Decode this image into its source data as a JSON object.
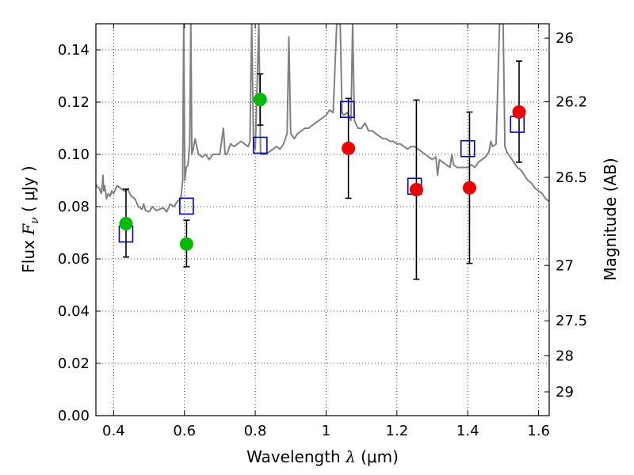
{
  "chart_data": {
    "type": "scatter",
    "xlabel": "Wavelength",
    "xlabel_symbol": "λ",
    "xlabel_unit": "(μm)",
    "ylabel": "Flux",
    "ylabel_symbol": "F",
    "ylabel_sub": "ν",
    "ylabel_unit": "( μJy )",
    "y2label": "Magnitude (AB)",
    "xlim": [
      0.35,
      1.63
    ],
    "ylim": [
      0.0,
      0.15
    ],
    "grid": true,
    "x_ticks": [
      {
        "value": 0.4,
        "label": "0.4"
      },
      {
        "value": 0.6,
        "label": "0.6"
      },
      {
        "value": 0.8,
        "label": "0.8"
      },
      {
        "value": 1.0,
        "label": "1"
      },
      {
        "value": 1.2,
        "label": "1.2"
      },
      {
        "value": 1.4,
        "label": "1.4"
      },
      {
        "value": 1.6,
        "label": "1.6"
      }
    ],
    "y_ticks": [
      {
        "value": 0.0,
        "label": "0.00"
      },
      {
        "value": 0.02,
        "label": "0.02"
      },
      {
        "value": 0.04,
        "label": "0.04"
      },
      {
        "value": 0.06,
        "label": "0.06"
      },
      {
        "value": 0.08,
        "label": "0.08"
      },
      {
        "value": 0.1,
        "label": "0.10"
      },
      {
        "value": 0.12,
        "label": "0.12"
      },
      {
        "value": 0.14,
        "label": "0.14"
      }
    ],
    "y2_ticks": [
      {
        "flux": 0.1445,
        "label": "26"
      },
      {
        "flux": 0.1202,
        "label": "26.2"
      },
      {
        "flux": 0.0912,
        "label": "26.5"
      },
      {
        "flux": 0.0575,
        "label": "27"
      },
      {
        "flux": 0.0363,
        "label": "27.5"
      },
      {
        "flux": 0.0229,
        "label": "28"
      },
      {
        "flux": 0.0091,
        "label": "29"
      }
    ],
    "series": [
      {
        "marker": "open-square",
        "color": "#0000cc",
        "points": [
          {
            "x": 0.435,
            "y": 0.0695
          },
          {
            "x": 0.606,
            "y": 0.0802
          },
          {
            "x": 0.814,
            "y": 0.1035
          },
          {
            "x": 1.06,
            "y": 0.1172
          },
          {
            "x": 1.25,
            "y": 0.0878
          },
          {
            "x": 1.4,
            "y": 0.1022
          },
          {
            "x": 1.54,
            "y": 0.1115
          }
        ]
      },
      {
        "marker": "filled-circle",
        "color": "#00bb00",
        "points": [
          {
            "x": 0.435,
            "y": 0.0735,
            "err_low": 0.0607,
            "err_high": 0.0867
          },
          {
            "x": 0.606,
            "y": 0.0657,
            "err_low": 0.057,
            "err_high": 0.0748
          },
          {
            "x": 0.814,
            "y": 0.121,
            "err_low": 0.1112,
            "err_high": 0.1308
          }
        ]
      },
      {
        "marker": "filled-circle",
        "color": "#ee0000",
        "points": [
          {
            "x": 1.063,
            "y": 0.1023,
            "err_low": 0.0832,
            "err_high": 0.1214
          },
          {
            "x": 1.255,
            "y": 0.0865,
            "err_low": 0.0522,
            "err_high": 0.1208
          },
          {
            "x": 1.405,
            "y": 0.0872,
            "err_low": 0.0583,
            "err_high": 0.1162
          },
          {
            "x": 1.545,
            "y": 0.1162,
            "err_low": 0.097,
            "err_high": 0.1357
          }
        ]
      }
    ],
    "spectrum": {
      "color": "#808080",
      "points": [
        [
          0.35,
          0.0885
        ],
        [
          0.355,
          0.0875
        ],
        [
          0.36,
          0.087
        ],
        [
          0.365,
          0.085
        ],
        [
          0.368,
          0.088
        ],
        [
          0.37,
          0.092
        ],
        [
          0.372,
          0.086
        ],
        [
          0.375,
          0.088
        ],
        [
          0.38,
          0.083
        ],
        [
          0.385,
          0.085
        ],
        [
          0.39,
          0.084
        ],
        [
          0.395,
          0.086
        ],
        [
          0.4,
          0.085
        ],
        [
          0.41,
          0.088
        ],
        [
          0.42,
          0.087
        ],
        [
          0.43,
          0.086
        ],
        [
          0.44,
          0.0865
        ],
        [
          0.45,
          0.084
        ],
        [
          0.46,
          0.083
        ],
        [
          0.47,
          0.08
        ],
        [
          0.48,
          0.079
        ],
        [
          0.485,
          0.081
        ],
        [
          0.49,
          0.0785
        ],
        [
          0.5,
          0.078
        ],
        [
          0.51,
          0.08
        ],
        [
          0.52,
          0.0785
        ],
        [
          0.53,
          0.079
        ],
        [
          0.54,
          0.0795
        ],
        [
          0.55,
          0.078
        ],
        [
          0.56,
          0.081
        ],
        [
          0.57,
          0.08
        ],
        [
          0.58,
          0.082
        ],
        [
          0.59,
          0.083
        ],
        [
          0.595,
          0.09
        ],
        [
          0.598,
          0.15
        ],
        [
          0.601,
          0.09
        ],
        [
          0.605,
          0.095
        ],
        [
          0.61,
          0.096
        ],
        [
          0.615,
          0.104
        ],
        [
          0.618,
          0.15
        ],
        [
          0.621,
          0.1
        ],
        [
          0.625,
          0.102
        ],
        [
          0.63,
          0.106
        ],
        [
          0.64,
          0.1
        ],
        [
          0.65,
          0.099
        ],
        [
          0.66,
          0.1
        ],
        [
          0.67,
          0.098
        ],
        [
          0.68,
          0.1
        ],
        [
          0.69,
          0.1
        ],
        [
          0.7,
          0.1
        ],
        [
          0.705,
          0.105
        ],
        [
          0.71,
          0.11
        ],
        [
          0.715,
          0.1
        ],
        [
          0.72,
          0.1
        ],
        [
          0.73,
          0.104
        ],
        [
          0.74,
          0.103
        ],
        [
          0.75,
          0.104
        ],
        [
          0.76,
          0.105
        ],
        [
          0.77,
          0.104
        ],
        [
          0.78,
          0.103
        ],
        [
          0.785,
          0.105
        ],
        [
          0.79,
          0.15
        ],
        [
          0.795,
          0.105
        ],
        [
          0.8,
          0.102
        ],
        [
          0.81,
          0.15
        ],
        [
          0.815,
          0.1
        ],
        [
          0.82,
          0.1
        ],
        [
          0.83,
          0.1
        ],
        [
          0.84,
          0.101
        ],
        [
          0.85,
          0.102
        ],
        [
          0.86,
          0.103
        ],
        [
          0.87,
          0.102
        ],
        [
          0.88,
          0.104
        ],
        [
          0.89,
          0.108
        ],
        [
          0.895,
          0.145
        ],
        [
          0.9,
          0.108
        ],
        [
          0.91,
          0.106
        ],
        [
          0.92,
          0.108
        ],
        [
          0.93,
          0.109
        ],
        [
          0.94,
          0.11
        ],
        [
          0.95,
          0.11
        ],
        [
          0.96,
          0.111
        ],
        [
          0.97,
          0.112
        ],
        [
          0.98,
          0.113
        ],
        [
          0.99,
          0.114
        ],
        [
          1.0,
          0.115
        ],
        [
          1.01,
          0.117
        ],
        [
          1.02,
          0.116
        ],
        [
          1.03,
          0.15
        ],
        [
          1.04,
          0.15
        ],
        [
          1.045,
          0.116
        ],
        [
          1.05,
          0.115
        ],
        [
          1.06,
          0.116
        ],
        [
          1.07,
          0.113
        ],
        [
          1.075,
          0.15
        ],
        [
          1.08,
          0.113
        ],
        [
          1.09,
          0.11
        ],
        [
          1.1,
          0.11
        ],
        [
          1.11,
          0.112
        ],
        [
          1.12,
          0.109
        ],
        [
          1.13,
          0.109
        ],
        [
          1.14,
          0.108
        ],
        [
          1.15,
          0.107
        ],
        [
          1.16,
          0.106
        ],
        [
          1.17,
          0.106
        ],
        [
          1.18,
          0.105
        ],
        [
          1.19,
          0.105
        ],
        [
          1.2,
          0.104
        ],
        [
          1.21,
          0.104
        ],
        [
          1.22,
          0.103
        ],
        [
          1.23,
          0.102
        ],
        [
          1.24,
          0.103
        ],
        [
          1.25,
          0.103
        ],
        [
          1.26,
          0.102
        ],
        [
          1.27,
          0.101
        ],
        [
          1.28,
          0.1
        ],
        [
          1.29,
          0.099
        ],
        [
          1.3,
          0.098
        ],
        [
          1.31,
          0.099
        ],
        [
          1.315,
          0.092
        ],
        [
          1.32,
          0.098
        ],
        [
          1.33,
          0.097
        ],
        [
          1.34,
          0.096
        ],
        [
          1.35,
          0.095
        ],
        [
          1.355,
          0.1
        ],
        [
          1.36,
          0.096
        ],
        [
          1.37,
          0.095
        ],
        [
          1.38,
          0.095
        ],
        [
          1.39,
          0.095
        ],
        [
          1.4,
          0.095
        ],
        [
          1.41,
          0.096
        ],
        [
          1.42,
          0.095
        ],
        [
          1.43,
          0.097
        ],
        [
          1.44,
          0.098
        ],
        [
          1.45,
          0.099
        ],
        [
          1.46,
          0.101
        ],
        [
          1.465,
          0.105
        ],
        [
          1.47,
          0.103
        ],
        [
          1.48,
          0.104
        ],
        [
          1.49,
          0.15
        ],
        [
          1.5,
          0.15
        ],
        [
          1.505,
          0.103
        ],
        [
          1.51,
          0.101
        ],
        [
          1.52,
          0.099
        ],
        [
          1.53,
          0.097
        ],
        [
          1.54,
          0.095
        ],
        [
          1.55,
          0.094
        ],
        [
          1.56,
          0.092
        ],
        [
          1.57,
          0.09
        ],
        [
          1.58,
          0.089
        ],
        [
          1.59,
          0.087
        ],
        [
          1.6,
          0.086
        ],
        [
          1.61,
          0.085
        ],
        [
          1.62,
          0.083
        ],
        [
          1.63,
          0.082
        ]
      ]
    }
  }
}
